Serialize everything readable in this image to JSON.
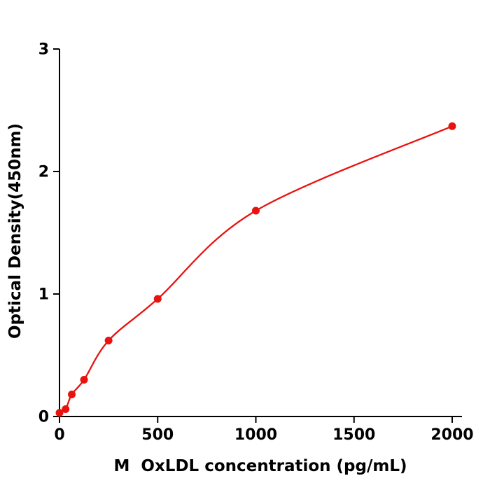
{
  "chart_data": {
    "type": "scatter",
    "title": "",
    "xlabel": "M  OxLDL concentration (pg/mL)",
    "ylabel": "Optical Density(450nm)",
    "x": [
      0,
      31.25,
      62.5,
      125,
      250,
      500,
      1000,
      2000
    ],
    "y": [
      0.03,
      0.06,
      0.18,
      0.3,
      0.62,
      0.96,
      1.68,
      2.37
    ],
    "xlim": [
      0,
      2050
    ],
    "ylim": [
      0,
      3
    ],
    "xticks": [
      0,
      500,
      1000,
      1500,
      2000
    ],
    "yticks": [
      0,
      1,
      2,
      3
    ],
    "grid": false,
    "legend": null,
    "line_color": "#e8120f",
    "point_color": "#e8120f",
    "axis_color": "#000000"
  }
}
